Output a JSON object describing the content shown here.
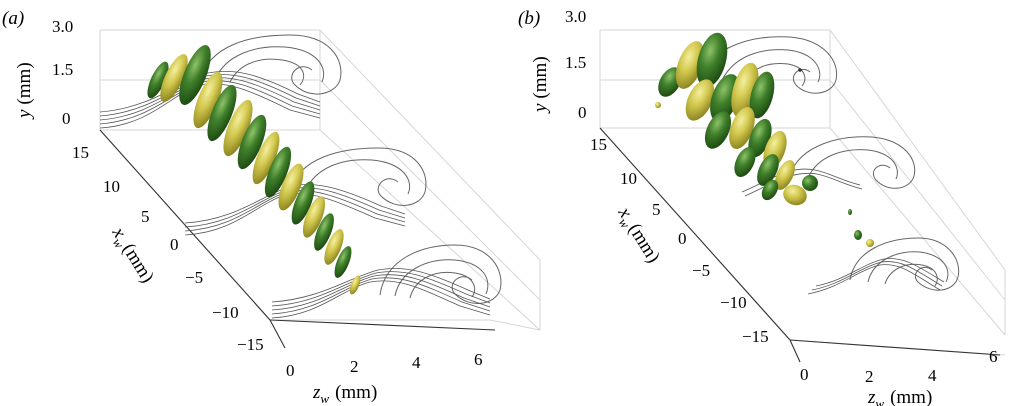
{
  "figure": {
    "panels": [
      {
        "label": "(a)",
        "y_axis": {
          "variable": "y",
          "unit": "(mm)",
          "ticks": [
            "3.0",
            "1.5",
            "0"
          ]
        },
        "x_axis": {
          "variable": "x",
          "subscript": "w",
          "unit": "(mm)",
          "ticks": [
            "15",
            "10",
            "5",
            "0",
            "−5",
            "−10",
            "−15"
          ]
        },
        "z_axis": {
          "variable": "z",
          "subscript": "w",
          "unit": "(mm)",
          "ticks": [
            "0",
            "2",
            "4",
            "6"
          ]
        }
      },
      {
        "label": "(b)",
        "y_axis": {
          "variable": "y",
          "unit": "(mm)",
          "ticks": [
            "3.0",
            "1.5",
            "0"
          ]
        },
        "x_axis": {
          "variable": "x",
          "subscript": "w",
          "unit": "(mm)",
          "ticks": [
            "15",
            "10",
            "5",
            "0",
            "−5",
            "−10",
            "−15"
          ]
        },
        "z_axis": {
          "variable": "z",
          "subscript": "w",
          "unit": "(mm)",
          "ticks": [
            "0",
            "2",
            "4",
            "6"
          ]
        }
      }
    ],
    "colors": {
      "dark_green": "#2f6a1f",
      "yellow_green": "#c9c24a",
      "contour": "#666666"
    }
  }
}
